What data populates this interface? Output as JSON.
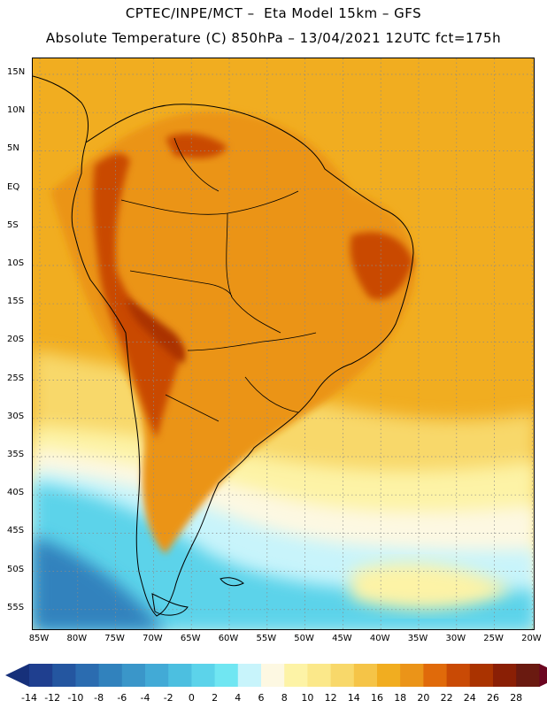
{
  "title_line1": "CPTEC/INPE/MCT –  Eta Model 15km – GFS",
  "title_line2": "Absolute Temperature (C) 850hPa – 13/04/2021 12UTC fct=175h",
  "lat_labels": [
    "15N",
    "10N",
    "5N",
    "EQ",
    "5S",
    "10S",
    "15S",
    "20S",
    "25S",
    "30S",
    "35S",
    "40S",
    "45S",
    "50S",
    "55S"
  ],
  "lon_labels": [
    "85W",
    "80W",
    "75W",
    "70W",
    "65W",
    "60W",
    "55W",
    "50W",
    "45W",
    "40W",
    "35W",
    "30W",
    "25W",
    "20W"
  ],
  "colorbar": {
    "labels": [
      "-14",
      "-12",
      "-10",
      "-8",
      "-6",
      "-4",
      "-2",
      "0",
      "2",
      "4",
      "6",
      "8",
      "10",
      "12",
      "14",
      "16",
      "18",
      "20",
      "22",
      "24",
      "26",
      "28"
    ],
    "colors": [
      "#1f3f8f",
      "#2456a0",
      "#2b6cb0",
      "#3182bd",
      "#3a96c9",
      "#42aad6",
      "#4cbfe0",
      "#5cd3ea",
      "#70e6f2",
      "#c8f4fb",
      "#fdf8e2",
      "#fdf3a6",
      "#fbe88a",
      "#f8d86a",
      "#f5c447",
      "#f1ad20",
      "#eb9418",
      "#e06a0a",
      "#c94a05",
      "#aa3300",
      "#8a1f05",
      "#6a1a10"
    ],
    "arrow_left_color": "#16307a",
    "arrow_right_color": "#6b0520"
  },
  "map_colors": {
    "ocean_warm": "#f1ad20",
    "land": "#eb9418",
    "highlands": "#c94a05",
    "peaks": "#aa3300",
    "cool": "#fdf3a6",
    "cold": "#c8f4fb",
    "colder": "#5cd3ea",
    "coldest": "#2b6cb0"
  }
}
